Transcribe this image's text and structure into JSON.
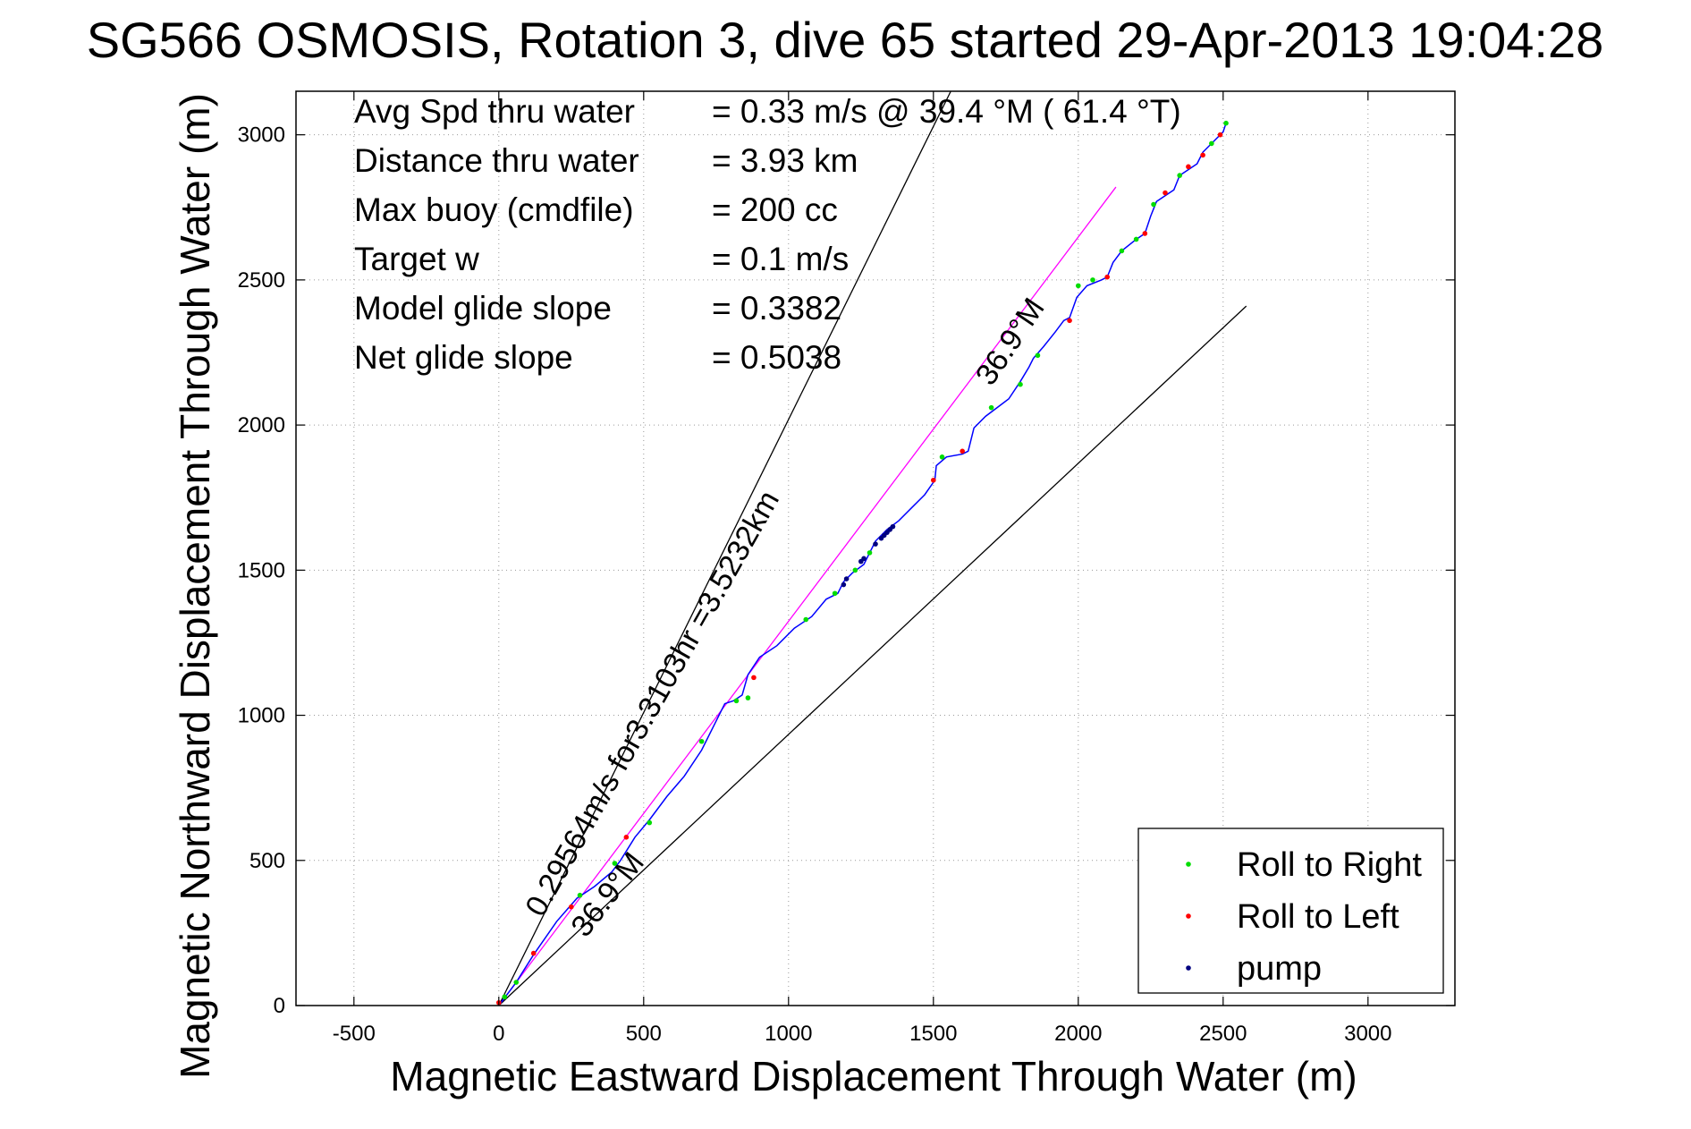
{
  "chart_data": {
    "type": "line",
    "title": "SG566 OSMOSIS, Rotation 3, dive 65 started 29-Apr-2013 19:04:28",
    "xlabel": "Magnetic Eastward Displacement Through Water (m)",
    "ylabel": "Magnetic Northward Displacement Through Water (m)",
    "xlim": [
      -700,
      3300
    ],
    "ylim": [
      0,
      3150
    ],
    "xticks": [
      -500,
      0,
      500,
      1000,
      1500,
      2000,
      2500,
      3000
    ],
    "yticks": [
      0,
      500,
      1000,
      1500,
      2000,
      2500,
      3000
    ],
    "xtick_labels": [
      "-500",
      "0",
      "500",
      "1000",
      "1500",
      "2000",
      "2500",
      "3000"
    ],
    "ytick_labels": [
      "0",
      "500",
      "1000",
      "1500",
      "2000",
      "2500",
      "3000"
    ],
    "grid": true,
    "legend_position": "bottom-right",
    "info_rows": [
      {
        "label": "Avg Spd thru water",
        "value": "=  0.33 m/s @  39.4 °M ( 61.4 °T)"
      },
      {
        "label": "Distance thru water",
        "value": "=  3.93 km"
      },
      {
        "label": "Max buoy (cmdfile)",
        "value": "= 200 cc"
      },
      {
        "label": "Target w",
        "value": "= 0.1 m/s"
      },
      {
        "label": "Model glide slope",
        "value": "= 0.3382"
      },
      {
        "label": "Net glide slope",
        "value": "= 0.5038"
      }
    ],
    "annotations": [
      {
        "text": "0.29564m/s for3.3103hr =3.5232km",
        "x": 150,
        "y": 300,
        "angle_deg": 60.5
      },
      {
        "text": "36.9°M",
        "x": 300,
        "y": 230,
        "angle_deg": 52
      },
      {
        "text": "36.9°M",
        "x": 1700,
        "y": 2130,
        "angle_deg": 56
      }
    ],
    "reference_lines": [
      {
        "color": "#000000",
        "points": [
          [
            0,
            0
          ],
          [
            1560,
            3150
          ]
        ]
      },
      {
        "color": "#000000",
        "points": [
          [
            0,
            0
          ],
          [
            2580,
            2410
          ]
        ]
      },
      {
        "color": "#ff00ff",
        "points": [
          [
            0,
            0
          ],
          [
            2130,
            2820
          ]
        ]
      }
    ],
    "track": {
      "color": "#0000ff",
      "points": [
        [
          0,
          0
        ],
        [
          60,
          80
        ],
        [
          120,
          175
        ],
        [
          200,
          290
        ],
        [
          270,
          370
        ],
        [
          330,
          410
        ],
        [
          390,
          460
        ],
        [
          420,
          500
        ],
        [
          470,
          580
        ],
        [
          520,
          640
        ],
        [
          580,
          720
        ],
        [
          640,
          790
        ],
        [
          700,
          880
        ],
        [
          750,
          980
        ],
        [
          780,
          1040
        ],
        [
          810,
          1050
        ],
        [
          840,
          1070
        ],
        [
          860,
          1140
        ],
        [
          900,
          1200
        ],
        [
          960,
          1240
        ],
        [
          1020,
          1300
        ],
        [
          1080,
          1340
        ],
        [
          1130,
          1400
        ],
        [
          1170,
          1420
        ],
        [
          1190,
          1460
        ],
        [
          1220,
          1490
        ],
        [
          1260,
          1520
        ],
        [
          1300,
          1600
        ],
        [
          1340,
          1640
        ],
        [
          1380,
          1670
        ],
        [
          1420,
          1710
        ],
        [
          1470,
          1760
        ],
        [
          1505,
          1810
        ],
        [
          1510,
          1860
        ],
        [
          1545,
          1890
        ],
        [
          1600,
          1900
        ],
        [
          1620,
          1910
        ],
        [
          1640,
          1990
        ],
        [
          1680,
          2030
        ],
        [
          1720,
          2060
        ],
        [
          1760,
          2090
        ],
        [
          1800,
          2150
        ],
        [
          1830,
          2200
        ],
        [
          1845,
          2230
        ],
        [
          1880,
          2270
        ],
        [
          1920,
          2320
        ],
        [
          1950,
          2360
        ],
        [
          1970,
          2370
        ],
        [
          1995,
          2440
        ],
        [
          2030,
          2480
        ],
        [
          2080,
          2500
        ],
        [
          2100,
          2510
        ],
        [
          2120,
          2560
        ],
        [
          2150,
          2600
        ],
        [
          2200,
          2640
        ],
        [
          2230,
          2660
        ],
        [
          2250,
          2720
        ],
        [
          2270,
          2770
        ],
        [
          2300,
          2790
        ],
        [
          2330,
          2810
        ],
        [
          2350,
          2860
        ],
        [
          2380,
          2880
        ],
        [
          2410,
          2900
        ],
        [
          2430,
          2940
        ],
        [
          2460,
          2970
        ],
        [
          2500,
          3010
        ],
        [
          2510,
          3040
        ]
      ]
    },
    "series": [
      {
        "name": "Roll to Right",
        "color": "#00dd00",
        "x": [
          20,
          60,
          280,
          400,
          520,
          700,
          820,
          860,
          1060,
          1160,
          1230,
          1280,
          1530,
          1700,
          1800,
          1860,
          2000,
          2050,
          2150,
          2200,
          2260,
          2350,
          2460,
          2510
        ],
        "y": [
          30,
          80,
          380,
          490,
          630,
          910,
          1050,
          1060,
          1330,
          1420,
          1500,
          1560,
          1890,
          2060,
          2140,
          2240,
          2480,
          2500,
          2600,
          2640,
          2760,
          2860,
          2970,
          3040
        ]
      },
      {
        "name": "Roll to Left",
        "color": "#ff0000",
        "x": [
          0,
          120,
          250,
          440,
          880,
          1500,
          1600,
          1970,
          2100,
          2230,
          2300,
          2380,
          2430,
          2490
        ],
        "y": [
          10,
          180,
          340,
          580,
          1130,
          1810,
          1910,
          2360,
          2510,
          2660,
          2800,
          2890,
          2930,
          3000
        ]
      },
      {
        "name": "pump",
        "color": "#000080",
        "x": [
          1190,
          1200,
          1250,
          1260,
          1300,
          1320,
          1330,
          1340,
          1350,
          1360
        ],
        "y": [
          1450,
          1470,
          1530,
          1540,
          1590,
          1610,
          1620,
          1630,
          1640,
          1650
        ]
      }
    ]
  }
}
